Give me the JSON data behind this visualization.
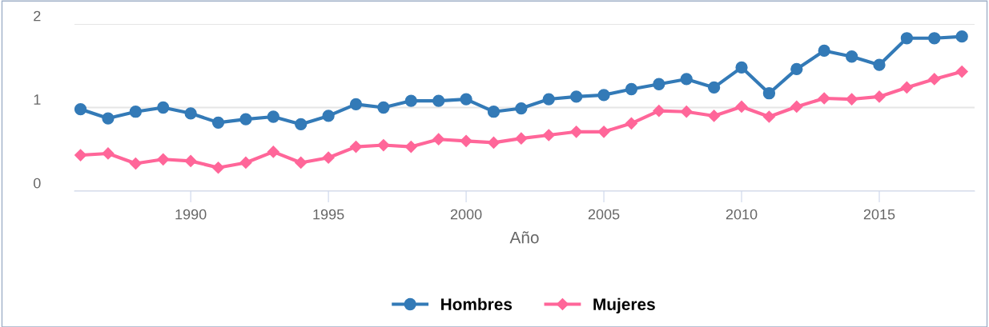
{
  "chart_data": {
    "type": "line",
    "xlabel": "Año",
    "x": [
      1986,
      1987,
      1988,
      1989,
      1990,
      1991,
      1992,
      1993,
      1994,
      1995,
      1996,
      1997,
      1998,
      1999,
      2000,
      2001,
      2002,
      2003,
      2004,
      2005,
      2006,
      2007,
      2008,
      2009,
      2010,
      2011,
      2012,
      2013,
      2014,
      2015,
      2016,
      2017,
      2018
    ],
    "series": [
      {
        "name": "Hombres",
        "color": "#337ab7",
        "marker": "circle",
        "values": [
          0.98,
          0.87,
          0.95,
          1.0,
          0.93,
          0.82,
          0.86,
          0.89,
          0.8,
          0.9,
          1.04,
          1.0,
          1.08,
          1.08,
          1.1,
          0.95,
          0.99,
          1.1,
          1.13,
          1.15,
          1.22,
          1.28,
          1.34,
          1.24,
          1.48,
          1.17,
          1.46,
          1.68,
          1.61,
          1.51,
          1.83,
          1.83,
          1.85
        ]
      },
      {
        "name": "Mujeres",
        "color": "#ff6699",
        "marker": "diamond",
        "values": [
          0.43,
          0.45,
          0.33,
          0.38,
          0.36,
          0.28,
          0.34,
          0.47,
          0.34,
          0.4,
          0.53,
          0.55,
          0.53,
          0.62,
          0.6,
          0.58,
          0.63,
          0.67,
          0.71,
          0.71,
          0.81,
          0.96,
          0.95,
          0.9,
          1.01,
          0.89,
          1.01,
          1.11,
          1.1,
          1.13,
          1.24,
          1.34,
          1.43
        ]
      }
    ],
    "xlim": [
      1985.78,
      2018.46
    ],
    "ylim": [
      0,
      2
    ],
    "xticks": [
      1990,
      1995,
      2000,
      2005,
      2010,
      2015
    ],
    "yticks": [
      0,
      1,
      2
    ],
    "grid": "y",
    "legend": "bottom",
    "line_style": "solid"
  }
}
